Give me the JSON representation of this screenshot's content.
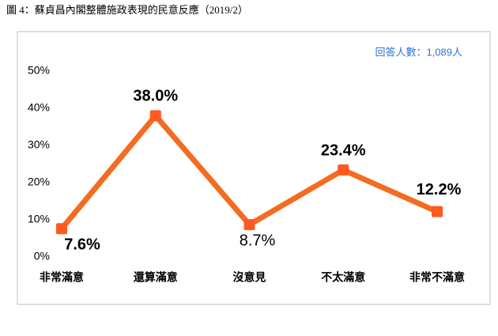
{
  "chart_data": {
    "type": "line",
    "title": "圖 4：蘇貞昌內閣整體施政表現的民意反應（2019/2）",
    "annotation": "回答人數：1,089人",
    "categories": [
      "非常滿意",
      "還算滿意",
      "沒意見",
      "不太滿意",
      "非常不滿意"
    ],
    "series": [
      {
        "name": "民意反應",
        "color": "#f36c21",
        "values": [
          7.6,
          38.0,
          8.7,
          23.4,
          12.2
        ],
        "value_labels": [
          "7.6%",
          "38.0%",
          "8.7%",
          "23.4%",
          "12.2%"
        ]
      }
    ],
    "ylim": [
      0,
      50
    ],
    "yticks": [
      {
        "value": 0,
        "label": "0%"
      },
      {
        "value": 10,
        "label": "10%"
      },
      {
        "value": 20,
        "label": "20%"
      },
      {
        "value": 30,
        "label": "30%"
      },
      {
        "value": 40,
        "label": "40%"
      },
      {
        "value": 50,
        "label": "50%"
      }
    ],
    "grid": false
  }
}
